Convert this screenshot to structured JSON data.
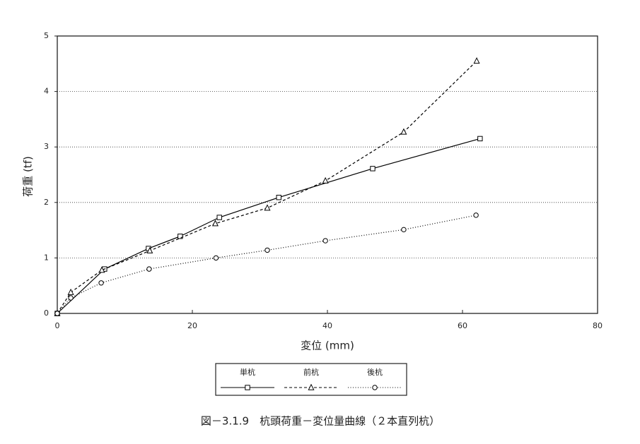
{
  "chart_data": {
    "type": "line",
    "caption": "図－3.1.9　杭頭荷重－変位量曲線（２本直列杭）",
    "x_label": "変位 (mm)",
    "y_label": "荷重 (tf)",
    "xlim": [
      0,
      80
    ],
    "xticks": [
      0,
      20,
      40,
      60,
      80
    ],
    "ylim": [
      0,
      5
    ],
    "yticks": [
      0,
      1,
      2,
      3,
      4,
      5
    ],
    "grid": true,
    "series": [
      {
        "name": "単杭",
        "color": "#000000",
        "marker": "square",
        "line_style": "solid",
        "x": [
          0,
          7,
          13.5,
          18.2,
          24,
          32.8,
          46.7,
          62.6
        ],
        "values": [
          0,
          0.8,
          1.17,
          1.39,
          1.73,
          2.09,
          2.61,
          3.15
        ]
      },
      {
        "name": "前杭",
        "color": "#000000",
        "marker": "triangle",
        "line_style": "dashed",
        "x": [
          0,
          2,
          6.6,
          13.7,
          23.4,
          31.1,
          39.7,
          51.3,
          62.1
        ],
        "values": [
          0,
          0.38,
          0.78,
          1.13,
          1.62,
          1.9,
          2.39,
          3.27,
          4.55
        ]
      },
      {
        "name": "後杭",
        "color": "#000000",
        "marker": "circle",
        "line_style": "dotted",
        "x": [
          0,
          2,
          6.5,
          13.6,
          23.5,
          31.1,
          39.7,
          51.3,
          62.0
        ],
        "values": [
          0,
          0.28,
          0.55,
          0.8,
          1.0,
          1.14,
          1.31,
          1.51,
          1.77
        ]
      }
    ]
  }
}
